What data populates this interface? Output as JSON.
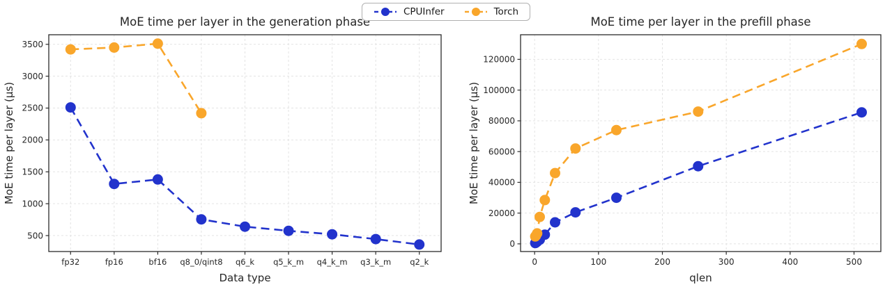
{
  "legend": {
    "items": [
      {
        "label": "CPUInfer",
        "color": "#2233cc"
      },
      {
        "label": "Torch",
        "color": "#f9a62b"
      }
    ]
  },
  "chart_data": [
    {
      "type": "line",
      "title": "MoE time per layer in the generation phase",
      "xlabel": "Data type",
      "ylabel": "MoE time per layer (µs)",
      "x_type": "categorical",
      "categories": [
        "fp32",
        "fp16",
        "bf16",
        "q8_0/qint8",
        "q6_k",
        "q5_k_m",
        "q4_k_m",
        "q3_k_m",
        "q2_k"
      ],
      "yticks": [
        500,
        1000,
        1500,
        2000,
        2500,
        3000,
        3500
      ],
      "ylim": [
        250,
        3650
      ],
      "grid": true,
      "legend_position": "figure-top-center",
      "series": [
        {
          "name": "CPUInfer",
          "color": "#2233cc",
          "values": [
            2510,
            1310,
            1380,
            755,
            640,
            575,
            520,
            445,
            360
          ]
        },
        {
          "name": "Torch",
          "color": "#f9a62b",
          "values": [
            3420,
            3450,
            3510,
            2420,
            null,
            null,
            null,
            null,
            null
          ]
        }
      ]
    },
    {
      "type": "line",
      "title": "MoE time per layer in the prefill phase",
      "xlabel": "qlen",
      "ylabel": "MoE time per layer (µs)",
      "x_type": "linear",
      "x": [
        1,
        2,
        4,
        8,
        16,
        32,
        64,
        128,
        256,
        512
      ],
      "xticks": [
        0,
        100,
        200,
        300,
        400,
        500
      ],
      "xlim": [
        -22,
        542
      ],
      "yticks": [
        0,
        20000,
        40000,
        60000,
        80000,
        100000,
        120000
      ],
      "ylim": [
        -5000,
        136000
      ],
      "grid": true,
      "legend_position": "figure-top-center",
      "series": [
        {
          "name": "CPUInfer",
          "color": "#2233cc",
          "values": [
            500,
            800,
            1400,
            2700,
            6000,
            14000,
            20500,
            30000,
            50500,
            85500
          ]
        },
        {
          "name": "Torch",
          "color": "#f9a62b",
          "values": [
            4800,
            5300,
            6800,
            17500,
            28500,
            46000,
            62000,
            74000,
            86000,
            130000
          ]
        }
      ]
    }
  ]
}
